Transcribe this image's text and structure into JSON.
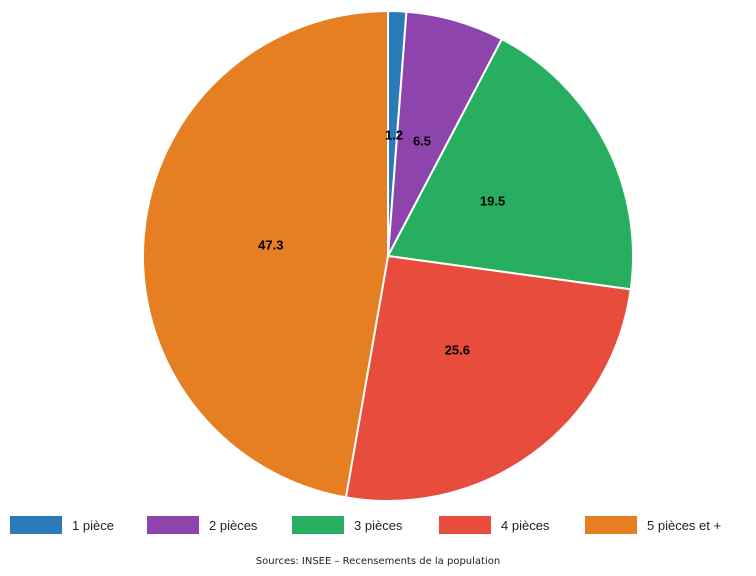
{
  "chart_data": {
    "type": "pie",
    "categories": [
      "1 pièce",
      "2 pièces",
      "3 pièces",
      "4 pièces",
      "5 pièces et +"
    ],
    "values": [
      1.2,
      6.5,
      19.5,
      25.6,
      47.3
    ],
    "value_labels": [
      "1.2",
      "6.5",
      "19.5",
      "25.6",
      "47.3"
    ],
    "colors": [
      "#2b7bba",
      "#8e44ad",
      "#27ae60",
      "#e74c3c",
      "#e67e22"
    ],
    "start": "top",
    "direction": "clockwise",
    "legend_position": "bottom",
    "title": ""
  },
  "source_text": "Sources: INSEE – Recensements de la population"
}
